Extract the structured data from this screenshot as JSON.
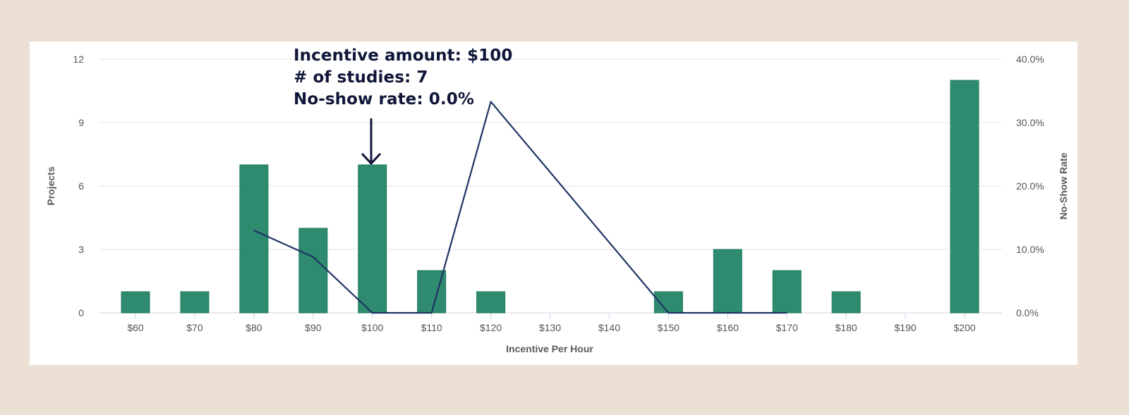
{
  "chart_data": {
    "type": "bar+line",
    "title": "",
    "xlabel": "Incentive Per Hour",
    "ylabel": "Projects",
    "y2label": "No-Show Rate",
    "categories": [
      "$60",
      "$70",
      "$80",
      "$90",
      "$100",
      "$110",
      "$120",
      "$130",
      "$140",
      "$150",
      "$160",
      "$170",
      "$180",
      "$190",
      "$200"
    ],
    "series": [
      {
        "name": "Projects",
        "type": "bar",
        "axis": "left",
        "color": "#2e8b6f",
        "values": [
          1,
          1,
          7,
          4,
          7,
          2,
          1,
          0,
          0,
          1,
          3,
          2,
          1,
          0,
          11
        ]
      },
      {
        "name": "No-Show Rate",
        "type": "line",
        "axis": "right",
        "color": "#1f3464",
        "values": [
          null,
          null,
          13.0,
          8.8,
          0.0,
          0.0,
          33.3,
          null,
          null,
          0.0,
          0.0,
          0.0,
          null,
          null,
          null
        ]
      }
    ],
    "ylim": [
      0,
      12
    ],
    "yticks": [
      0,
      3,
      6,
      9,
      12
    ],
    "y2lim": [
      0,
      40
    ],
    "y2ticks": [
      "0.0%",
      "10.0%",
      "20.0%",
      "30.0%",
      "40.0%"
    ],
    "grid": true,
    "legend": "none",
    "annotations": [
      {
        "target": "$100",
        "lines": [
          "Incentive amount: $100",
          "# of studies: 7",
          "No-show rate: 0.0%"
        ]
      }
    ]
  },
  "annotation": {
    "line1": "Incentive amount: $100",
    "line2": "# of studies: 7",
    "line3": "No-show rate: 0.0%"
  },
  "colors": {
    "background": "#ece0d4",
    "panel": "#ffffff",
    "bar": "#2e8b6f",
    "line": "#1f3464",
    "annotation": "#101638",
    "grid": "#e3e3e3"
  }
}
